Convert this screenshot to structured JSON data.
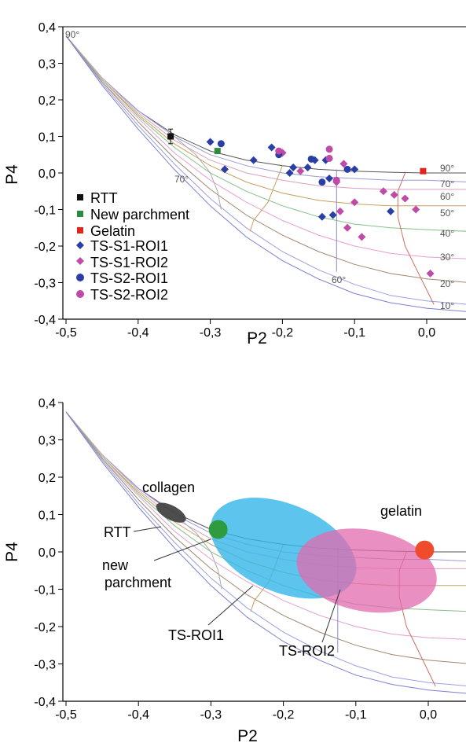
{
  "chart_data": [
    {
      "type": "scatter",
      "xlabel": "P2",
      "ylabel": "P4",
      "xlim": [
        -0.5,
        0.05
      ],
      "ylim": [
        -0.4,
        0.4
      ],
      "xticks": [
        "-0,5",
        "-0,4",
        "-0,3",
        "-0,2",
        "-0,1",
        "0,0"
      ],
      "yticks": [
        "-0,4",
        "-0,3",
        "-0,2",
        "-0,1",
        "0,0",
        "0,1",
        "0,2",
        "0,3",
        "0,4"
      ],
      "legend_position": "bottom-left",
      "series": [
        {
          "name": "RTT",
          "marker": "square",
          "color": "#111111",
          "points": [
            [
              -0.355,
              0.1
            ]
          ]
        },
        {
          "name": "New parchment",
          "marker": "square",
          "color": "#2e8b3e",
          "points": [
            [
              -0.29,
              0.06
            ]
          ]
        },
        {
          "name": "Gelatin",
          "marker": "square",
          "color": "#e0261c",
          "points": [
            [
              -0.005,
              0.005
            ]
          ]
        },
        {
          "name": "TS-S1-ROI1",
          "marker": "diamond",
          "color": "#2a3fa6",
          "points": [
            [
              -0.3,
              0.085
            ],
            [
              -0.28,
              0.01
            ],
            [
              -0.24,
              0.035
            ],
            [
              -0.215,
              0.07
            ],
            [
              -0.2,
              0.055
            ],
            [
              -0.19,
              0.0
            ],
            [
              -0.185,
              0.015
            ],
            [
              -0.165,
              0.015
            ],
            [
              -0.155,
              0.035
            ],
            [
              -0.14,
              0.035
            ],
            [
              -0.135,
              -0.015
            ],
            [
              -0.13,
              -0.115
            ],
            [
              -0.145,
              -0.12
            ],
            [
              -0.1,
              0.01
            ],
            [
              -0.05,
              -0.105
            ]
          ]
        },
        {
          "name": "TS-S1-ROI2",
          "marker": "diamond",
          "color": "#c04aa8",
          "points": [
            [
              -0.2,
              0.055
            ],
            [
              -0.175,
              0.005
            ],
            [
              -0.115,
              0.025
            ],
            [
              -0.125,
              -0.025
            ],
            [
              -0.12,
              -0.105
            ],
            [
              -0.1,
              -0.08
            ],
            [
              -0.11,
              -0.15
            ],
            [
              -0.09,
              -0.175
            ],
            [
              -0.06,
              -0.05
            ],
            [
              -0.045,
              -0.06
            ],
            [
              -0.03,
              -0.07
            ],
            [
              -0.015,
              -0.1
            ],
            [
              0.005,
              -0.275
            ]
          ]
        },
        {
          "name": "TS-S2-ROI1",
          "marker": "circle",
          "color": "#2a3fa6",
          "points": [
            [
              -0.285,
              0.08
            ],
            [
              -0.205,
              0.05
            ],
            [
              -0.16,
              0.038
            ],
            [
              -0.145,
              -0.025
            ],
            [
              -0.11,
              0.01
            ]
          ]
        },
        {
          "name": "TS-S2-ROI2",
          "marker": "circle",
          "color": "#c04aa8",
          "points": [
            [
              -0.205,
              0.06
            ],
            [
              -0.135,
              0.065
            ],
            [
              -0.135,
              0.04
            ],
            [
              -0.125,
              -0.02
            ]
          ]
        }
      ],
      "error_bar": {
        "series": "RTT",
        "x": -0.355,
        "y": 0.1,
        "yerr": 0.02
      },
      "annotations": [
        "90°",
        "70°",
        "60°",
        "90°",
        "70°",
        "60°",
        "50°",
        "40°",
        "30°",
        "20°",
        "10°"
      ]
    },
    {
      "type": "scatter",
      "xlabel": "P2",
      "ylabel": "P4",
      "xlim": [
        -0.5,
        0.05
      ],
      "ylim": [
        -0.4,
        0.4
      ],
      "xticks": [
        "-0,5",
        "-0,4",
        "-0,3",
        "-0,2",
        "-0,1",
        "0,0"
      ],
      "yticks": [
        "-0,4",
        "-0,3",
        "-0,2",
        "-0,1",
        "0,0",
        "0,1",
        "0,2",
        "0,3",
        "0,4"
      ],
      "regions": [
        {
          "label": "RTT",
          "shape": "ellipse",
          "color": "#444444",
          "center": [
            -0.355,
            0.105
          ],
          "radii": [
            0.022,
            0.022
          ]
        },
        {
          "label": "new parchment",
          "shape": "circle",
          "color": "#2e9b3e",
          "center": [
            -0.29,
            0.06
          ],
          "radii": [
            0.012,
            0.024
          ]
        },
        {
          "label": "TS-ROI1",
          "shape": "ellipse",
          "color": "#35b7e8",
          "center": [
            -0.2,
            0.01
          ],
          "radii": [
            0.105,
            0.105
          ]
        },
        {
          "label": "TS-ROI2",
          "shape": "ellipse",
          "color": "#e26aad",
          "center": [
            -0.085,
            -0.05
          ],
          "radii": [
            0.1,
            0.1
          ]
        },
        {
          "label": "gelatin",
          "shape": "circle",
          "color": "#ef4c2b",
          "center": [
            -0.005,
            0.005
          ],
          "radii": [
            0.012,
            0.024
          ]
        }
      ],
      "annotations": [
        "collagen",
        "RTT",
        "new parchment",
        "gelatin",
        "TS-ROI1",
        "TS-ROI2"
      ]
    }
  ],
  "top": {
    "legend": [
      "RTT",
      "New parchment",
      "Gelatin",
      "TS-S1-ROI1",
      "TS-S1-ROI2",
      "TS-S2-ROI1",
      "TS-S2-ROI2"
    ],
    "angle_labels": {
      "a90_left": "90°",
      "a70_mid": "70°",
      "a60_mid": "60°",
      "r90": "90°",
      "r70": "70°",
      "r60": "60°",
      "r50": "50°",
      "r40": "40°",
      "r30": "30°",
      "r20": "20°",
      "r10": "10°"
    }
  },
  "bottom": {
    "labels": {
      "collagen": "collagen",
      "rtt": "RTT",
      "new": "new",
      "parchment": "parchment",
      "gelatin": "gelatin",
      "tsroi1": "TS-ROI1",
      "tsroi2": "TS-ROI2"
    }
  }
}
